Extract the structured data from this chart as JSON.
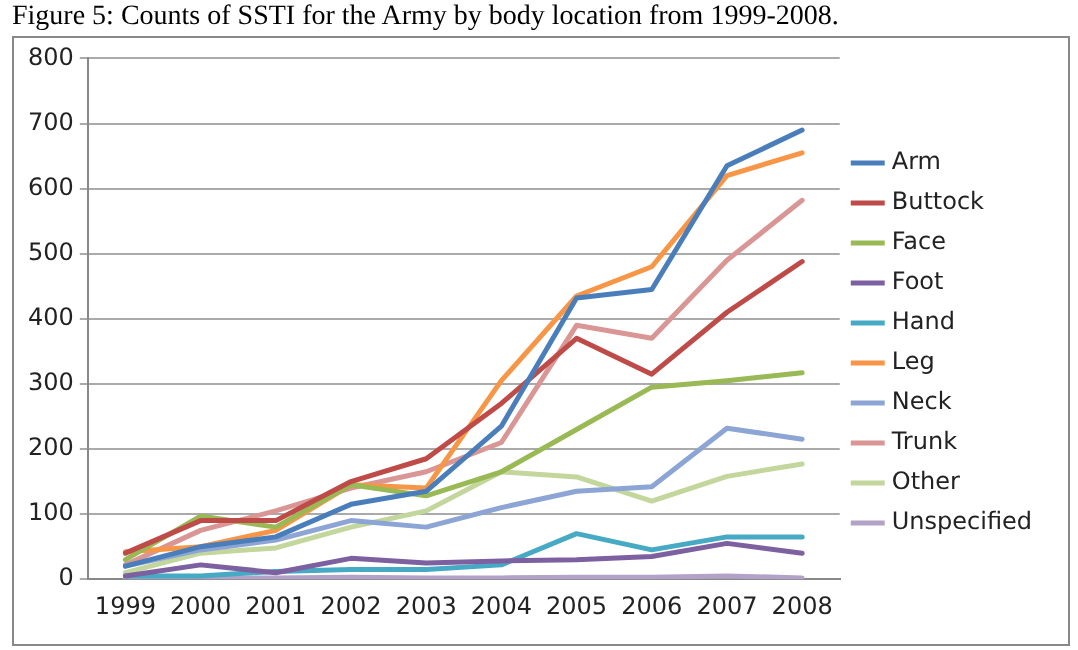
{
  "chart_data": {
    "type": "line",
    "title": "Figure 5: Counts of SSTI for the Army by body location from 1999-2008.",
    "categories": [
      "1999",
      "2000",
      "2001",
      "2002",
      "2003",
      "2004",
      "2005",
      "2006",
      "2007",
      "2008"
    ],
    "series": [
      {
        "name": "Arm",
        "color": "#4a7ebb",
        "values": [
          20,
          50,
          65,
          115,
          135,
          235,
          432,
          445,
          635,
          690
        ]
      },
      {
        "name": "Buttock",
        "color": "#be4b48",
        "values": [
          40,
          90,
          90,
          150,
          185,
          270,
          370,
          315,
          410,
          488
        ]
      },
      {
        "name": "Face",
        "color": "#98b954",
        "values": [
          30,
          97,
          80,
          145,
          128,
          165,
          230,
          295,
          305,
          317
        ]
      },
      {
        "name": "Foot",
        "color": "#7d60a0",
        "values": [
          5,
          22,
          10,
          32,
          25,
          28,
          30,
          35,
          55,
          40
        ]
      },
      {
        "name": "Hand",
        "color": "#46aac5",
        "values": [
          5,
          5,
          12,
          15,
          15,
          22,
          70,
          45,
          65,
          65
        ]
      },
      {
        "name": "Leg",
        "color": "#f79646",
        "values": [
          42,
          50,
          75,
          145,
          140,
          305,
          435,
          480,
          620,
          655
        ]
      },
      {
        "name": "Neck",
        "color": "#8ca5d5",
        "values": [
          20,
          45,
          60,
          90,
          80,
          110,
          135,
          142,
          232,
          215
        ]
      },
      {
        "name": "Trunk",
        "color": "#d99694",
        "values": [
          22,
          75,
          105,
          140,
          165,
          210,
          390,
          370,
          490,
          582
        ]
      },
      {
        "name": "Other",
        "color": "#c3d69b",
        "values": [
          10,
          40,
          48,
          80,
          105,
          165,
          157,
          120,
          158,
          177
        ]
      },
      {
        "name": "Unspecified",
        "color": "#b3a2c7",
        "values": [
          2,
          2,
          2,
          3,
          2,
          2,
          3,
          3,
          5,
          2
        ]
      }
    ],
    "ylim": [
      0,
      800
    ],
    "yticks": [
      0,
      100,
      200,
      300,
      400,
      500,
      600,
      700,
      800
    ],
    "grid": "y",
    "legend": "right",
    "marker": "none",
    "line_style": "solid"
  }
}
